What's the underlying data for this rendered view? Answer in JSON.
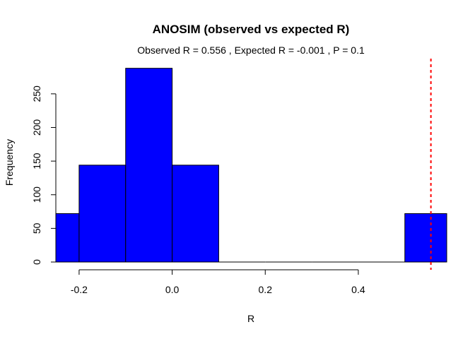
{
  "chart_data": {
    "type": "bar",
    "title": "ANOSIM (observed vs expected R)",
    "subtitle": "Observed R =  0.556 , Expected R =  -0.001 , P =  0.1",
    "xlabel": "R",
    "ylabel": "Frequency",
    "bins": [
      {
        "from": -0.25,
        "to": -0.2,
        "count": 72
      },
      {
        "from": -0.2,
        "to": -0.1,
        "count": 144
      },
      {
        "from": -0.1,
        "to": 0.0,
        "count": 288
      },
      {
        "from": 0.0,
        "to": 0.1,
        "count": 144
      },
      {
        "from": 0.1,
        "to": 0.2,
        "count": 0
      },
      {
        "from": 0.2,
        "to": 0.3,
        "count": 0
      },
      {
        "from": 0.3,
        "to": 0.4,
        "count": 0
      },
      {
        "from": 0.4,
        "to": 0.5,
        "count": 0
      },
      {
        "from": 0.5,
        "to": 0.59,
        "count": 72
      }
    ],
    "xlim": [
      -0.25,
      0.59
    ],
    "ylim": [
      0,
      295
    ],
    "xticks": [
      -0.2,
      0.0,
      0.2,
      0.4
    ],
    "xtick_labels": [
      "-0.2",
      "0.0",
      "0.2",
      "0.4"
    ],
    "yticks": [
      0,
      50,
      100,
      150,
      200,
      250
    ],
    "ytick_labels": [
      "0",
      "50",
      "100",
      "150",
      "200",
      "250"
    ],
    "observed_line": {
      "x": 0.556,
      "style": "dashed",
      "color": "#ff0000"
    },
    "bar_color": "#0000ff",
    "grid": false
  }
}
